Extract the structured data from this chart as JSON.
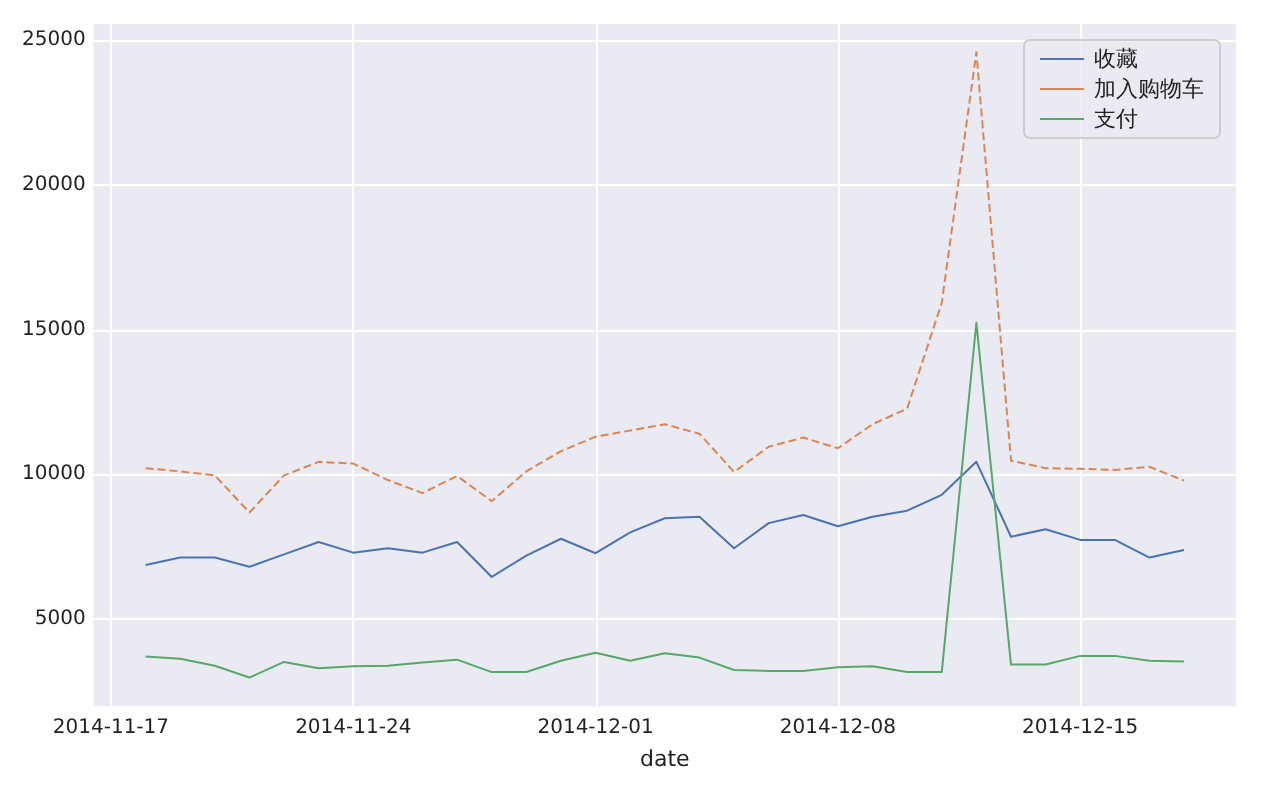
{
  "chart_data": {
    "type": "line",
    "xlabel": "date",
    "x": [
      "2014-11-18",
      "2014-11-19",
      "2014-11-20",
      "2014-11-21",
      "2014-11-22",
      "2014-11-23",
      "2014-11-24",
      "2014-11-25",
      "2014-11-26",
      "2014-11-27",
      "2014-11-28",
      "2014-11-29",
      "2014-11-30",
      "2014-12-01",
      "2014-12-02",
      "2014-12-03",
      "2014-12-04",
      "2014-12-05",
      "2014-12-06",
      "2014-12-07",
      "2014-12-08",
      "2014-12-09",
      "2014-12-10",
      "2014-12-11",
      "2014-12-12",
      "2014-12-13",
      "2014-12-14",
      "2014-12-15",
      "2014-12-16",
      "2014-12-17",
      "2014-12-18"
    ],
    "series": [
      {
        "name": "收藏",
        "color": "#4c72b0",
        "line_style": "solid",
        "values": [
          6860,
          7120,
          7120,
          6800,
          7230,
          7660,
          7290,
          7440,
          7290,
          7660,
          6450,
          7190,
          7770,
          7270,
          7990,
          8480,
          8530,
          7440,
          8310,
          8590,
          8200,
          8530,
          8740,
          9290,
          10430,
          7840,
          8100,
          7730,
          7730,
          7120,
          7380
        ]
      },
      {
        "name": "加入购物车",
        "color": "#dd8452",
        "line_style": "dashed",
        "values": [
          10210,
          10100,
          9960,
          8680,
          9960,
          10430,
          10370,
          9800,
          9350,
          9940,
          9070,
          10100,
          10800,
          11300,
          11510,
          11730,
          11400,
          10080,
          10950,
          11270,
          10900,
          11730,
          12270,
          15930,
          24590,
          10470,
          10210,
          10190,
          10150,
          10260,
          9780
        ]
      },
      {
        "name": "支付",
        "color": "#55a868",
        "line_style": "solid",
        "values": [
          3700,
          3620,
          3380,
          2970,
          3510,
          3290,
          3360,
          3380,
          3490,
          3590,
          3160,
          3160,
          3550,
          3830,
          3550,
          3810,
          3660,
          3230,
          3200,
          3200,
          3330,
          3360,
          3160,
          3160,
          15240,
          3420,
          3420,
          3720,
          3720,
          3550,
          3530
        ]
      }
    ],
    "xlim": [
      "2014-11-16T12:00",
      "2014-12-19T12:00"
    ],
    "xticks": [
      "2014-11-17",
      "2014-11-24",
      "2014-12-01",
      "2014-12-08",
      "2014-12-15"
    ],
    "ylim": [
      1980,
      25570
    ],
    "yticks": [
      5000,
      10000,
      15000,
      20000,
      25000
    ],
    "grid": true,
    "legend": "top right",
    "marker": "none"
  }
}
